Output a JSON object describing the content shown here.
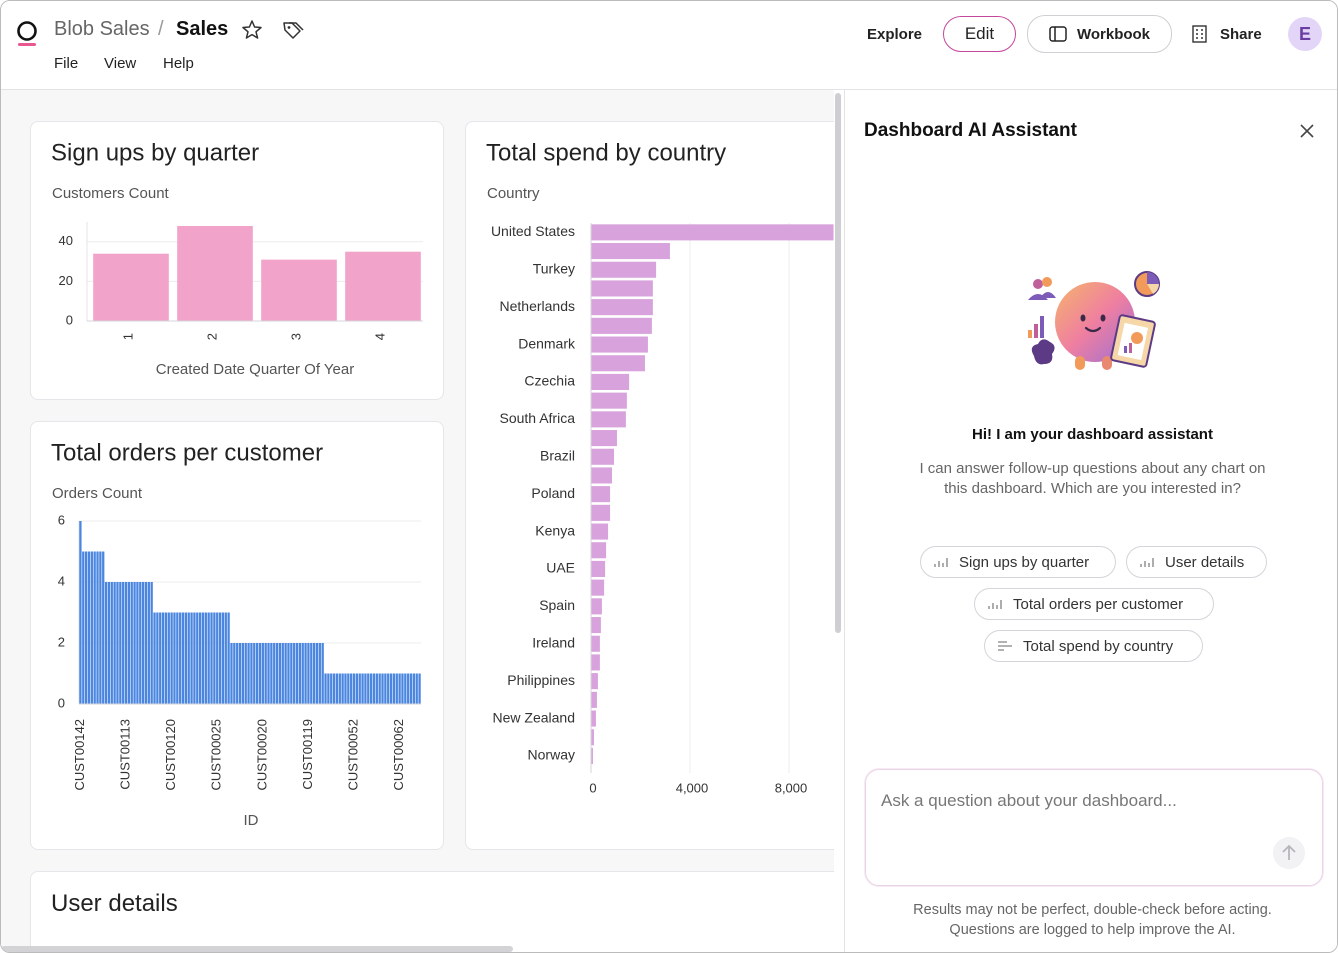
{
  "header": {
    "breadcrumb": [
      "Blob Sales",
      "Sales"
    ],
    "menu": [
      "File",
      "View",
      "Help"
    ],
    "actions": [
      "Explore",
      "Edit",
      "Workbook",
      "Share"
    ],
    "avatar": "E"
  },
  "chart_data": [
    {
      "type": "bar",
      "title": "Sign ups by quarter",
      "y_label": "Customers Count",
      "x_label": "Created Date Quarter Of Year",
      "categories": [
        "1",
        "2",
        "3",
        "4"
      ],
      "values": [
        34,
        48,
        31,
        35
      ],
      "color": "#f2a3c9",
      "ylim": [
        0,
        50
      ],
      "yticks": [
        0,
        20,
        40
      ],
      "grid": true
    },
    {
      "type": "bar",
      "title": "Total orders per customer",
      "y_label": "Orders Count",
      "x_label": "ID",
      "categories": [
        "CUST00142",
        null,
        null,
        null,
        null,
        null,
        null,
        null,
        null,
        null,
        null,
        null,
        null,
        null,
        null,
        null,
        "CUST00113",
        null,
        null,
        null,
        null,
        null,
        null,
        null,
        null,
        null,
        null,
        null,
        null,
        null,
        null,
        null,
        "CUST00120",
        null,
        null,
        null,
        null,
        null,
        null,
        null,
        null,
        null,
        null,
        null,
        null,
        null,
        null,
        null,
        "CUST00025",
        null,
        null,
        null,
        null,
        null,
        null,
        null,
        null,
        null,
        null,
        null,
        null,
        null,
        null,
        null,
        "CUST00020",
        null,
        null,
        null,
        null,
        null,
        null,
        null,
        null,
        null,
        null,
        null,
        null,
        null,
        null,
        null,
        "CUST00119",
        null,
        null,
        null,
        null,
        null,
        null,
        null,
        null,
        null,
        null,
        null,
        null,
        null,
        null,
        null,
        "CUST00052",
        null,
        null,
        null,
        null,
        null,
        null,
        null,
        null,
        null,
        null,
        null,
        null,
        null,
        null,
        null,
        "CUST00062",
        null,
        null,
        null,
        null,
        null,
        null,
        null
      ],
      "values": [
        6,
        5,
        5,
        5,
        5,
        5,
        5,
        5,
        5,
        4,
        4,
        4,
        4,
        4,
        4,
        4,
        4,
        4,
        4,
        4,
        4,
        4,
        4,
        4,
        4,
        4,
        3,
        3,
        3,
        3,
        3,
        3,
        3,
        3,
        3,
        3,
        3,
        3,
        3,
        3,
        3,
        3,
        3,
        3,
        3,
        3,
        3,
        3,
        3,
        3,
        3,
        3,
        3,
        2,
        2,
        2,
        2,
        2,
        2,
        2,
        2,
        2,
        2,
        2,
        2,
        2,
        2,
        2,
        2,
        2,
        2,
        2,
        2,
        2,
        2,
        2,
        2,
        2,
        2,
        2,
        2,
        2,
        2,
        2,
        2,
        2,
        1,
        1,
        1,
        1,
        1,
        1,
        1,
        1,
        1,
        1,
        1,
        1,
        1,
        1,
        1,
        1,
        1,
        1,
        1,
        1,
        1,
        1,
        1,
        1,
        1,
        1,
        1,
        1,
        1,
        1,
        1,
        1,
        1,
        1
      ],
      "color": "#4a86e0",
      "ylim": [
        0,
        6
      ],
      "yticks": [
        0,
        2,
        4,
        6
      ],
      "grid": true
    },
    {
      "type": "horizontal_bar",
      "title": "Total spend by country",
      "y_label": "Country",
      "categories": [
        "United States",
        null,
        "Turkey",
        null,
        "Netherlands",
        null,
        "Denmark",
        null,
        "Czechia",
        null,
        "South Africa",
        null,
        "Brazil",
        null,
        "Poland",
        null,
        "Kenya",
        null,
        "UAE",
        null,
        "Spain",
        null,
        "Ireland",
        null,
        "Philippines",
        null,
        "New Zealand",
        null,
        "Norway"
      ],
      "values": [
        9800,
        3190,
        2630,
        2500,
        2500,
        2460,
        2300,
        2180,
        1540,
        1450,
        1410,
        1050,
        930,
        850,
        770,
        770,
        690,
        610,
        570,
        530,
        440,
        400,
        360,
        360,
        280,
        240,
        200,
        120,
        80
      ],
      "color": "#d8a3dc",
      "xlim": [
        0,
        9800
      ],
      "xticks": [
        0,
        {
          "value": 4000,
          "label": "4,000"
        },
        {
          "value": 8000,
          "label": "8,000"
        }
      ],
      "grid": true
    }
  ],
  "user_details": {
    "title": "User details"
  },
  "assistant": {
    "title": "Dashboard AI Assistant",
    "greeting": "Hi! I am your dashboard assistant",
    "description": "I can answer follow-up questions about any chart on this dashboard. Which are you interested in?",
    "suggestions": [
      "Sign ups by quarter",
      "User details",
      "Total orders per customer",
      "Total spend by country"
    ],
    "input_placeholder": "Ask a question about your dashboard...",
    "disclaimer": [
      "Results may not be perfect, double-check before acting.",
      "Questions are logged to help improve the AI."
    ]
  }
}
